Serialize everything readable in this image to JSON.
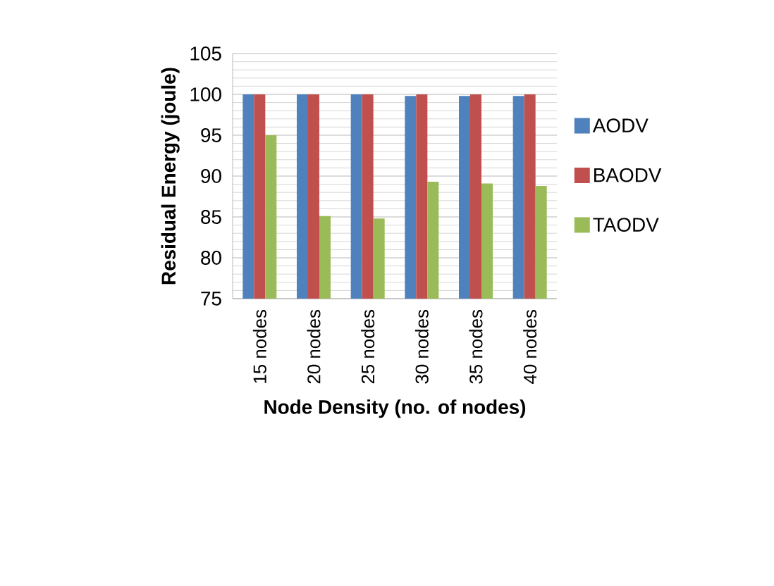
{
  "chart_data": {
    "type": "bar",
    "xlabel": "Node Density (no. of nodes)",
    "ylabel": "Residual Energy (joule)",
    "categories": [
      "15 nodes",
      "20 nodes",
      "25 nodes",
      "30 nodes",
      "35 nodes",
      "40 nodes"
    ],
    "series": [
      {
        "name": "AODV",
        "color": "#4f81bd",
        "values": [
          100,
          100,
          100,
          99.8,
          99.8,
          99.8
        ]
      },
      {
        "name": "BAODV",
        "color": "#c0504d",
        "values": [
          100,
          100,
          100,
          100,
          100,
          100
        ]
      },
      {
        "name": "TAODV",
        "color": "#9bbb59",
        "values": [
          95,
          85.1,
          84.8,
          89.3,
          89.1,
          88.8
        ]
      }
    ],
    "ylim": [
      75,
      105
    ],
    "yticks": [
      75,
      80,
      85,
      90,
      95,
      100,
      105
    ],
    "grid": "y",
    "legend": "right"
  }
}
